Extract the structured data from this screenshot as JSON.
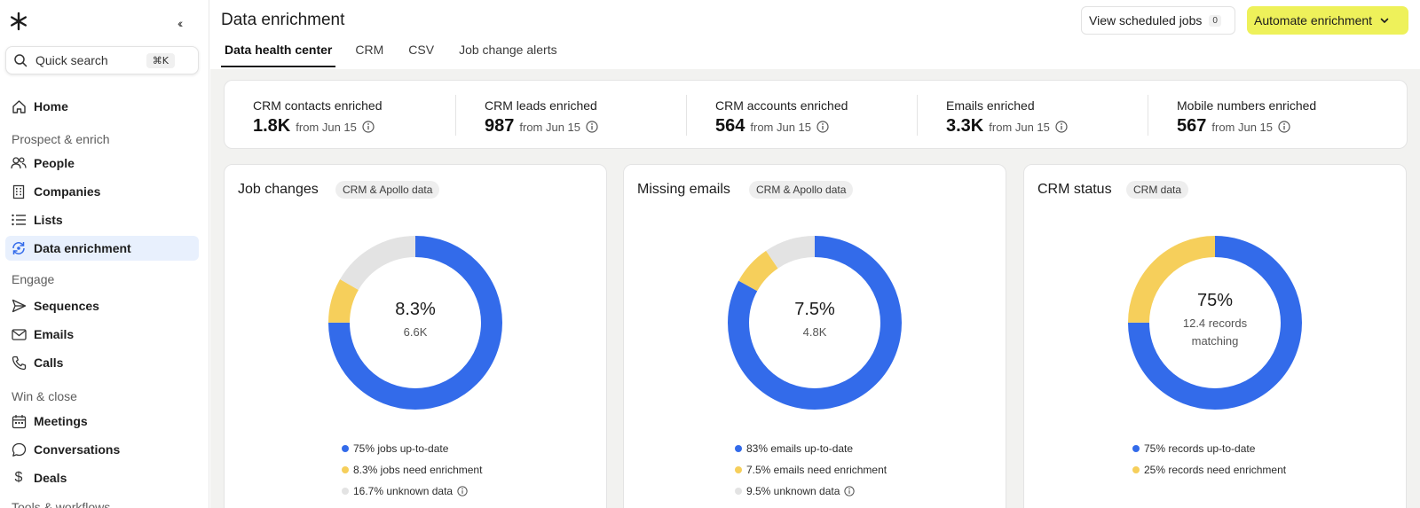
{
  "sidebar": {
    "search": {
      "label": "Quick search",
      "shortcut": "⌘K"
    },
    "home": "Home",
    "sections": {
      "prospect": "Prospect & enrich",
      "engage": "Engage",
      "win": "Win & close",
      "tools": "Tools & workflows"
    },
    "items": {
      "people": "People",
      "companies": "Companies",
      "lists": "Lists",
      "data_enrichment": "Data enrichment",
      "sequences": "Sequences",
      "emails": "Emails",
      "calls": "Calls",
      "meetings": "Meetings",
      "conversations": "Conversations",
      "deals": "Deals"
    }
  },
  "header": {
    "title": "Data enrichment",
    "tabs": [
      "Data health center",
      "CRM",
      "CSV",
      "Job change alerts"
    ],
    "scheduled_label": "View scheduled jobs",
    "scheduled_count": "0",
    "automate_label": "Automate enrichment"
  },
  "stats": [
    {
      "title": "CRM contacts enriched",
      "value": "1.8K",
      "from": "from Jun  15"
    },
    {
      "title": "CRM leads enriched",
      "value": "987",
      "from": "from Jun 15"
    },
    {
      "title": "CRM accounts enriched",
      "value": "564",
      "from": "from Jun 15"
    },
    {
      "title": "Emails enriched",
      "value": "3.3K",
      "from": "from Jun 15"
    },
    {
      "title": "Mobile numbers enriched",
      "value": "567",
      "from": "from Jun 15"
    }
  ],
  "cards": [
    {
      "title": "Job changes",
      "badge": "CRM & Apollo data",
      "center_pct": "8.3%",
      "center_sub": "6.6K",
      "segments": [
        75,
        8.3,
        16.7
      ],
      "legend": [
        "75% jobs up-to-date",
        "8.3% jobs need enrichment",
        "16.7% unknown data"
      ]
    },
    {
      "title": "Missing emails",
      "badge": "CRM & Apollo data",
      "center_pct": "7.5%",
      "center_sub": "4.8K",
      "segments": [
        83,
        7.5,
        9.5
      ],
      "legend": [
        "83% emails up-to-date",
        "7.5% emails need enrichment",
        "9.5% unknown data"
      ]
    },
    {
      "title": "CRM status",
      "badge": "CRM data",
      "center_pct": "75%",
      "center_sub_1": "12.4 records",
      "center_sub_2": "matching",
      "segments": [
        75,
        25
      ],
      "legend": [
        "75% records up-to-date",
        "25% records need enrichment"
      ]
    }
  ],
  "colors": {
    "blue": "#336bea",
    "yellow": "#f6cf5b",
    "gray": "#e3e3e3",
    "accent_button": "#eef15a",
    "active_nav": "#e8f0fd"
  }
}
